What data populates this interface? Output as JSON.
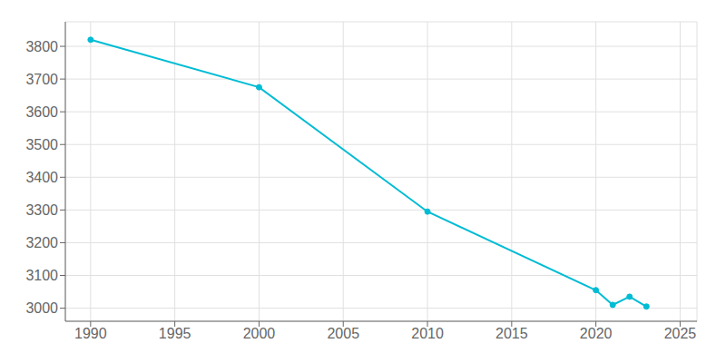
{
  "chart_data": {
    "type": "line",
    "x": [
      1990,
      2000,
      2010,
      2020,
      2021,
      2022,
      2023
    ],
    "values": [
      3820,
      3675,
      3295,
      3055,
      3010,
      3035,
      3005
    ],
    "color": "#00BCD4",
    "marker": "circle",
    "xlim": [
      1988.5,
      2026
    ],
    "xticks": [
      1990,
      1995,
      2000,
      2005,
      2010,
      2015,
      2020,
      2025
    ],
    "ylim": [
      2960,
      3875
    ],
    "yticks": [
      3000,
      3100,
      3200,
      3300,
      3400,
      3500,
      3600,
      3700,
      3800
    ],
    "grid": true
  }
}
